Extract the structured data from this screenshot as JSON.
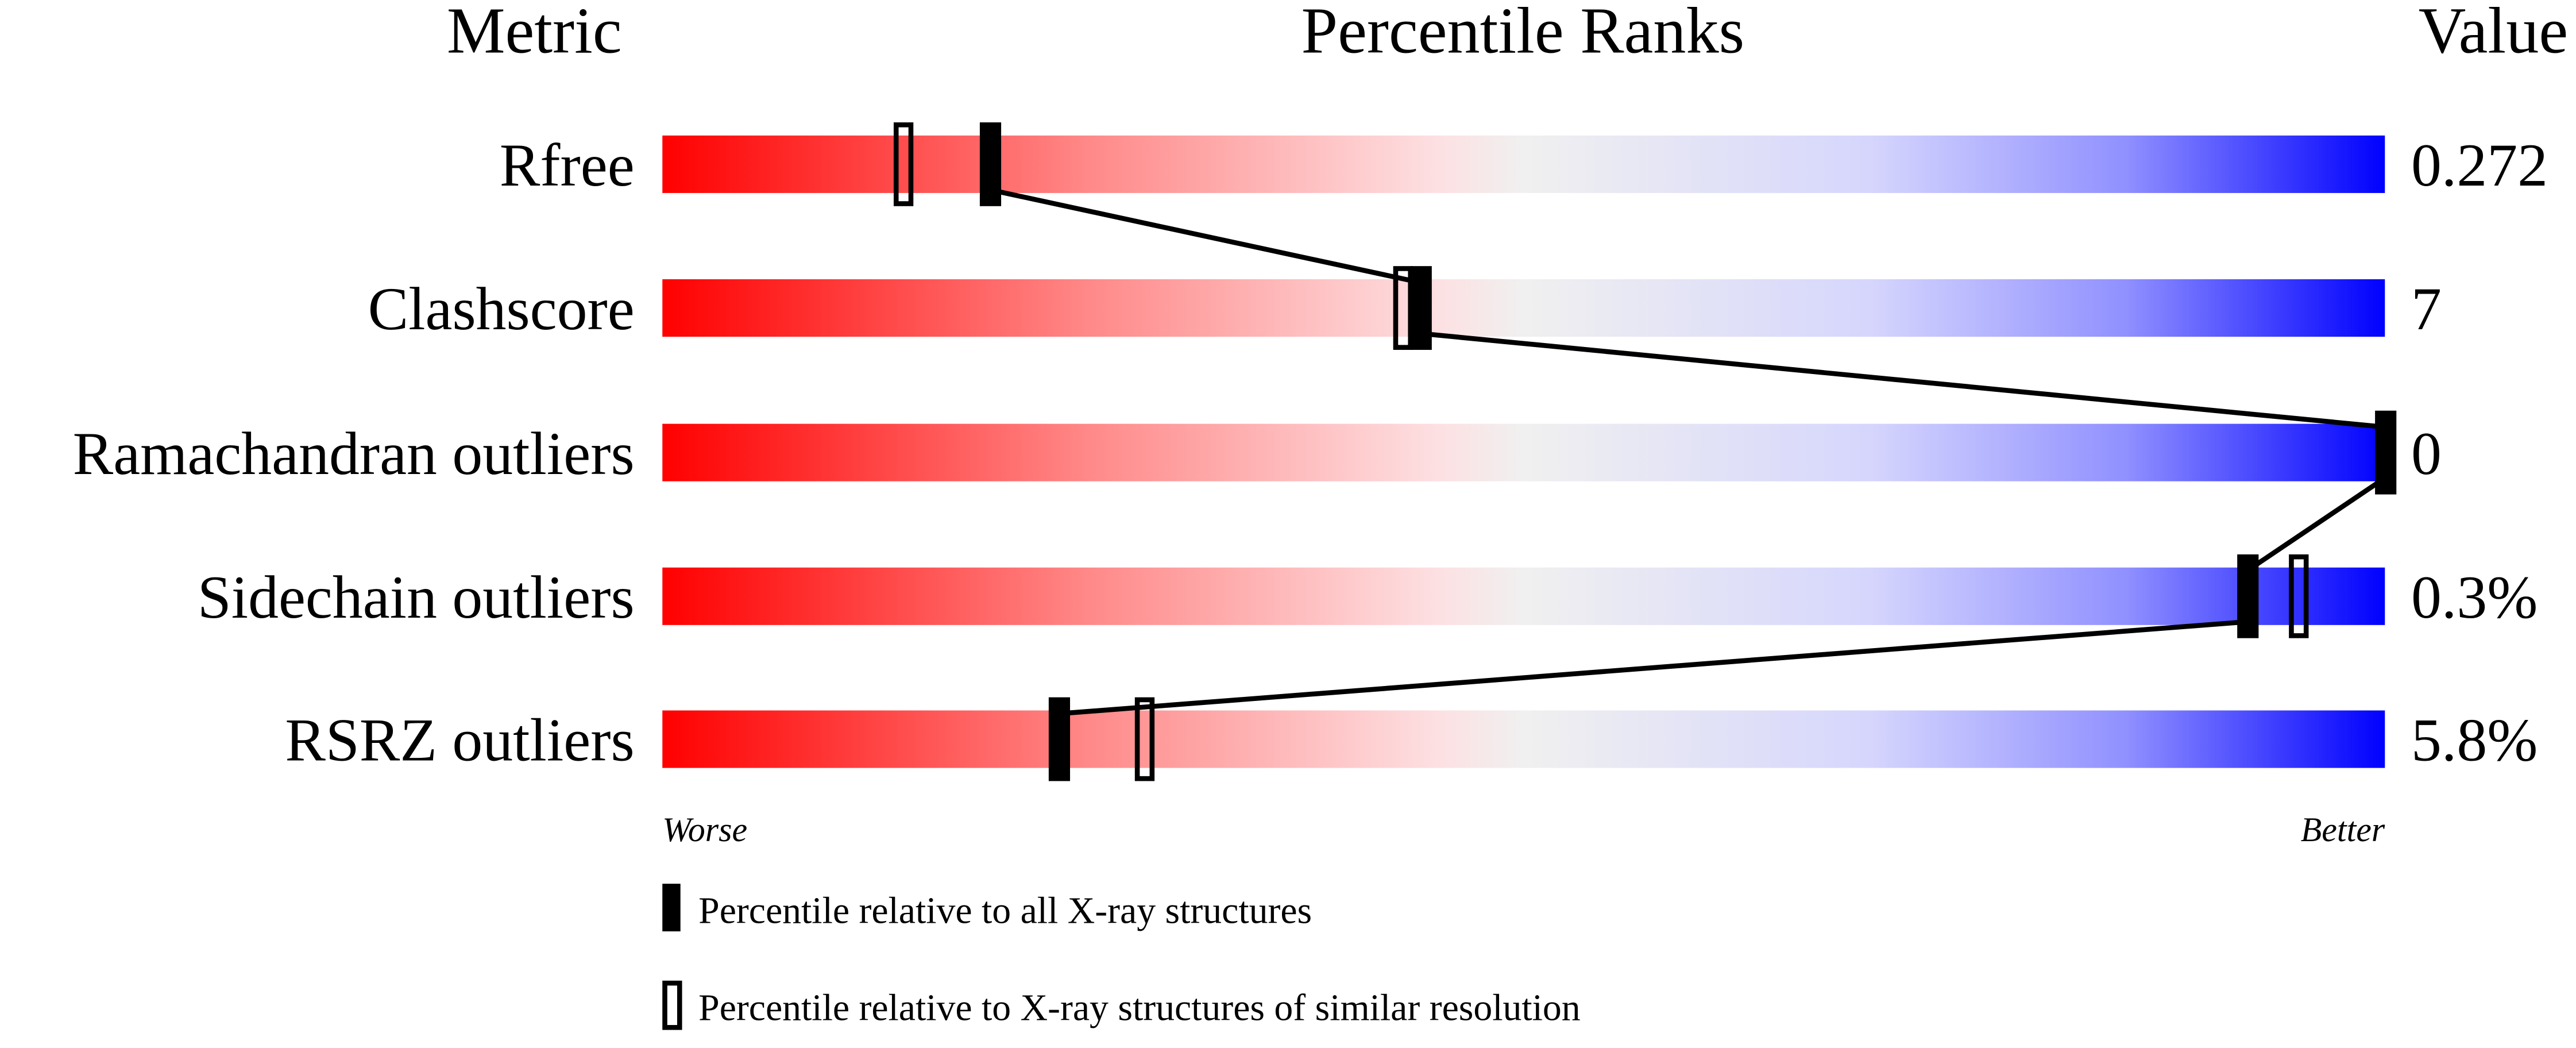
{
  "chart_data": {
    "type": "percentile-bar",
    "headers": {
      "metric": "Metric",
      "ranks": "Percentile Ranks",
      "value": "Value"
    },
    "xlim": [
      0,
      100
    ],
    "axis_labels": {
      "left": "Worse",
      "right": "Better"
    },
    "gradient_colors": {
      "worse": "#ff0000",
      "middle": "#f0f0f0",
      "better": "#0000ff"
    },
    "marker_color": "#000000",
    "metrics": [
      {
        "name": "Rfree",
        "value": "0.272",
        "percentile_all": 19,
        "percentile_similar": 14
      },
      {
        "name": "Clashscore",
        "value": "7",
        "percentile_all": 44,
        "percentile_similar": 43
      },
      {
        "name": "Ramachandran outliers",
        "value": "0",
        "percentile_all": 100,
        "percentile_similar": 100
      },
      {
        "name": "Sidechain outliers",
        "value": "0.3%",
        "percentile_all": 92,
        "percentile_similar": 95
      },
      {
        "name": "RSRZ outliers",
        "value": "5.8%",
        "percentile_all": 23,
        "percentile_similar": 28
      }
    ],
    "legend": [
      {
        "marker": "filled",
        "label": "Percentile relative to all X-ray structures"
      },
      {
        "marker": "open",
        "label": "Percentile relative to X-ray structures of similar resolution"
      }
    ]
  }
}
